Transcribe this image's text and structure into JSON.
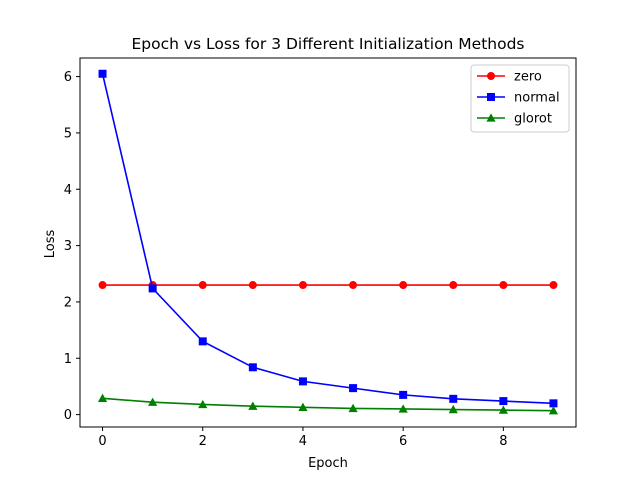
{
  "chart_data": {
    "type": "line",
    "title": "Epoch vs Loss for 3 Different Initialization Methods",
    "xlabel": "Epoch",
    "ylabel": "Loss",
    "x": [
      0,
      1,
      2,
      3,
      4,
      5,
      6,
      7,
      8,
      9
    ],
    "xlim": [
      -0.45,
      9.45
    ],
    "ylim": [
      -0.22,
      6.33
    ],
    "xticks": [
      0,
      2,
      4,
      6,
      8
    ],
    "yticks": [
      0,
      1,
      2,
      3,
      4,
      5,
      6
    ],
    "grid": false,
    "legend_position": "top-right",
    "series": [
      {
        "name": "zero",
        "color": "#ff0000",
        "marker": "circle",
        "values": [
          2.3,
          2.3,
          2.3,
          2.3,
          2.3,
          2.3,
          2.3,
          2.3,
          2.3,
          2.3
        ]
      },
      {
        "name": "normal",
        "color": "#0000ff",
        "marker": "square",
        "values": [
          6.05,
          2.24,
          1.3,
          0.84,
          0.59,
          0.47,
          0.35,
          0.28,
          0.24,
          0.2
        ]
      },
      {
        "name": "glorot",
        "color": "#008000",
        "marker": "triangle",
        "values": [
          0.29,
          0.22,
          0.18,
          0.15,
          0.13,
          0.11,
          0.1,
          0.09,
          0.08,
          0.07
        ]
      }
    ]
  }
}
